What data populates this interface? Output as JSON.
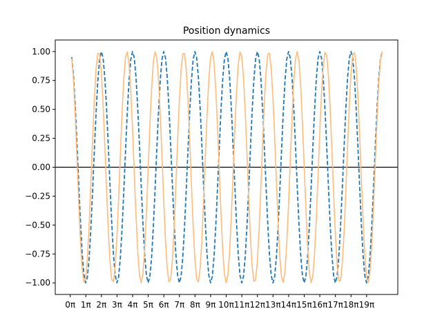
{
  "chart_data": {
    "type": "line",
    "title": "Position dynamics",
    "xlabel": "",
    "ylabel": "",
    "x_tick_labels": [
      "0π",
      "1π",
      "2π",
      "3π",
      "4π",
      "5π",
      "6π",
      "7π",
      "8π",
      "9π",
      "10π",
      "11π",
      "12π",
      "13π",
      "14π",
      "15π",
      "16π",
      "17π",
      "18π",
      "19π"
    ],
    "x_tick_values_pi": [
      0,
      1,
      2,
      3,
      4,
      5,
      6,
      7,
      8,
      9,
      10,
      11,
      12,
      13,
      14,
      15,
      16,
      17,
      18,
      19
    ],
    "y_ticks": [
      -1.0,
      -0.75,
      -0.5,
      -0.25,
      0.0,
      0.25,
      0.5,
      0.75,
      1.0
    ],
    "y_tick_labels": [
      "−1.00",
      "−0.75",
      "−0.50",
      "−0.25",
      "0.00",
      "0.25",
      "0.50",
      "0.75",
      "1.00"
    ],
    "xlim_pi": [
      -0.96,
      21.0
    ],
    "ylim": [
      -1.1,
      1.1
    ],
    "x_range_pi": [
      0.1,
      20.0
    ],
    "horizontal_line_y": 0.0,
    "grid": false,
    "series": [
      {
        "style": "dashed",
        "color": "#1f77b4",
        "function": "cos",
        "angular_frequency": 1.0,
        "phase_pi": 0.0
      },
      {
        "style": "solid",
        "color": "#ffbb78",
        "function": "cos",
        "angular_frequency": 1.1,
        "phase_pi": 0.0
      }
    ]
  }
}
